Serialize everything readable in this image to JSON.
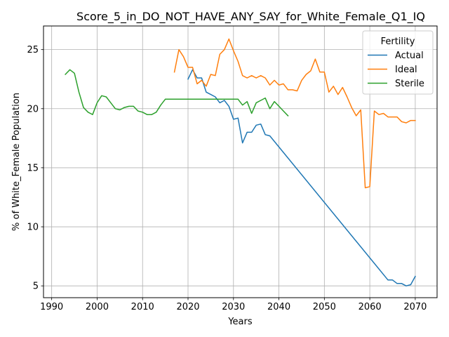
{
  "chart_data": {
    "type": "line",
    "title": "Score_5_in_DO_NOT_HAVE_ANY_SAY_for_White_Female_Q1_IQ",
    "xlabel": "Years",
    "ylabel": "% of White_Female Population",
    "xlim": [
      1988.2,
      2074.8
    ],
    "ylim": [
      4.0,
      27.0
    ],
    "xticks": [
      1990,
      2000,
      2010,
      2020,
      2030,
      2040,
      2050,
      2060,
      2070
    ],
    "yticks": [
      5,
      10,
      15,
      20,
      25
    ],
    "grid": true,
    "legend": {
      "title": "Fertility",
      "placement": "top-right"
    },
    "series": [
      {
        "name": "Actual",
        "color": "#1f77b4",
        "x": [
          2020,
          2021,
          2022,
          2023,
          2024,
          2025,
          2026,
          2027,
          2028,
          2029,
          2030,
          2031,
          2032,
          2033,
          2034,
          2035,
          2036,
          2037,
          2038,
          2064,
          2065,
          2066,
          2067,
          2068,
          2069,
          2070
        ],
        "y": [
          22.5,
          23.3,
          22.6,
          22.6,
          21.4,
          21.2,
          21.0,
          20.5,
          20.7,
          20.2,
          19.1,
          19.2,
          17.1,
          18.0,
          18.0,
          18.6,
          18.7,
          17.8,
          17.7,
          5.5,
          5.5,
          5.2,
          5.2,
          5.0,
          5.1,
          5.8
        ]
      },
      {
        "name": "Ideal",
        "color": "#ff7f0e",
        "x": [
          2017,
          2018,
          2019,
          2020,
          2021,
          2022,
          2023,
          2024,
          2025,
          2026,
          2027,
          2028,
          2029,
          2030,
          2031,
          2032,
          2033,
          2034,
          2035,
          2036,
          2037,
          2038,
          2039,
          2040,
          2041,
          2042,
          2043,
          2044,
          2045,
          2046,
          2047,
          2048,
          2049,
          2050,
          2051,
          2052,
          2053,
          2054,
          2055,
          2056,
          2057,
          2058,
          2059,
          2060,
          2061,
          2062,
          2063,
          2064,
          2065,
          2066,
          2067,
          2068,
          2069,
          2070
        ],
        "y": [
          23.1,
          25.0,
          24.4,
          23.5,
          23.5,
          22.1,
          22.4,
          21.9,
          22.9,
          22.8,
          24.6,
          25.0,
          25.9,
          24.9,
          24.0,
          22.8,
          22.6,
          22.8,
          22.6,
          22.8,
          22.6,
          22.0,
          22.4,
          22.0,
          22.1,
          21.6,
          21.6,
          21.5,
          22.4,
          22.9,
          23.2,
          24.2,
          23.1,
          23.1,
          21.4,
          21.9,
          21.2,
          21.8,
          21.0,
          20.1,
          19.4,
          19.9,
          13.3,
          13.4,
          19.8,
          19.5,
          19.6,
          19.3,
          19.3,
          19.3,
          18.9,
          18.8,
          19.0,
          19.0
        ]
      },
      {
        "name": "Sterile",
        "color": "#2ca02c",
        "x": [
          1993,
          1994,
          1995,
          1996,
          1997,
          1998,
          1999,
          2000,
          2001,
          2002,
          2003,
          2004,
          2005,
          2006,
          2007,
          2008,
          2009,
          2010,
          2011,
          2012,
          2013,
          2014,
          2015,
          2016,
          2017,
          2018,
          2019,
          2020,
          2021,
          2022,
          2023,
          2024,
          2025,
          2026,
          2027,
          2028,
          2029,
          2030,
          2031,
          2032,
          2033,
          2034,
          2035,
          2036,
          2037,
          2038,
          2039,
          2040,
          2041,
          2042
        ],
        "y": [
          22.9,
          23.3,
          23.0,
          21.4,
          20.1,
          19.7,
          19.5,
          20.5,
          21.1,
          21.0,
          20.5,
          20.0,
          19.9,
          20.1,
          20.2,
          20.2,
          19.8,
          19.7,
          19.5,
          19.5,
          19.7,
          20.3,
          20.8,
          20.8,
          20.8,
          20.8,
          20.8,
          20.8,
          20.8,
          20.8,
          20.8,
          20.8,
          20.8,
          20.8,
          20.8,
          20.8,
          20.8,
          20.8,
          20.8,
          20.3,
          20.6,
          19.6,
          20.5,
          20.7,
          20.9,
          20.0,
          20.6,
          20.2,
          19.8,
          19.4
        ]
      }
    ]
  }
}
